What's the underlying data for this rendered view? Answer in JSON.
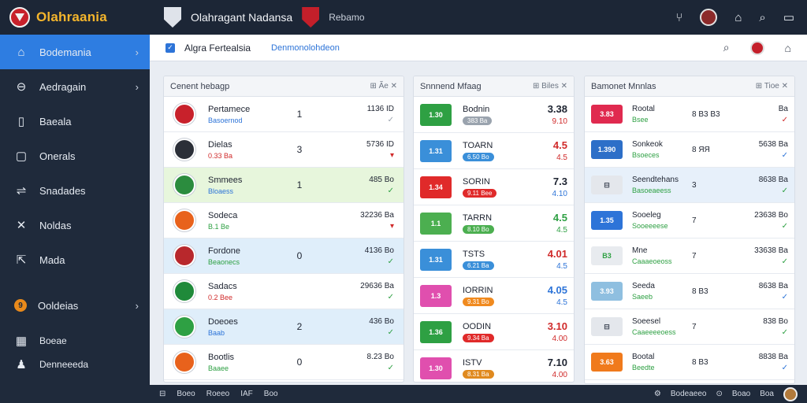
{
  "app": {
    "brand": "Olahraania",
    "title": "Olahragant Nadansa",
    "subtitle": "Rebamo"
  },
  "sidebar": {
    "items": [
      {
        "label": "Bodemania",
        "icon": "home-icon",
        "glyph": "⌂",
        "chevron": "›"
      },
      {
        "label": "Aedragain",
        "icon": "minus-circle-icon",
        "glyph": "⊖",
        "chevron": "›"
      },
      {
        "label": "Baeala",
        "icon": "document-icon",
        "glyph": "▯"
      },
      {
        "label": "Onerals",
        "icon": "folder-icon",
        "glyph": "▢"
      },
      {
        "label": "Snadades",
        "icon": "switch-icon",
        "glyph": "⇌"
      },
      {
        "label": "Noldas",
        "icon": "cross-icon",
        "glyph": "✕"
      },
      {
        "label": "Mada",
        "icon": "export-icon",
        "glyph": "⇱"
      },
      {
        "label": "Ooldeias",
        "icon": "orange-badge-icon",
        "glyph": "9",
        "chevron": "›"
      },
      {
        "label": "Boeae",
        "icon": "grid-icon",
        "glyph": "▦"
      },
      {
        "label": "Denneeeda",
        "icon": "user-icon",
        "glyph": "♟"
      }
    ]
  },
  "toolbar": {
    "title": "Algra Fertealsia",
    "link": "Denmonolohdeon"
  },
  "panel1": {
    "header": "Cenent hebagp",
    "tools": "⊞ Ãe ✕",
    "rows": [
      {
        "name": "Pertamece",
        "sub": "Basoernod",
        "score": "1",
        "odds": "1136 ID",
        "mark": "✓",
        "tint": "",
        "logo": "#c8212b",
        "subColor": "#2d74d8"
      },
      {
        "name": "Dielas",
        "sub": "0.33 Ba",
        "score": "3",
        "odds": "5736 ID",
        "mark": "▾",
        "tint": "",
        "logo": "#2b2f38",
        "subColor": "#d02a2a"
      },
      {
        "name": "Smmees",
        "sub": "Bloaess",
        "score": "1",
        "odds": "485 Bo",
        "mark": "✓",
        "tint": "green",
        "logo": "#2b8c3e",
        "subColor": "#2d74d8"
      },
      {
        "name": "Sodeca",
        "sub": "B.1 Be",
        "score": "",
        "odds": "32236 Ba",
        "mark": "▾",
        "tint": "",
        "logo": "#e8621c",
        "subColor": "#2ea043"
      },
      {
        "name": "Fordone",
        "sub": "Beaonecs",
        "score": "0",
        "odds": "4136 Bo",
        "mark": "✓",
        "tint": "blue",
        "logo": "#b8282c",
        "subColor": "#2ea043"
      },
      {
        "name": "Sadacs",
        "sub": "0.2 Bee",
        "score": "",
        "odds": "29636 Ba",
        "mark": "✓",
        "tint": "",
        "logo": "#1f8a3a",
        "subColor": "#d02a2a"
      },
      {
        "name": "Doeoes",
        "sub": "Baab",
        "score": "2",
        "odds": "436 Bo",
        "mark": "✓",
        "tint": "blue",
        "logo": "#2ea043",
        "subColor": "#2d74d8"
      },
      {
        "name": "Bootlis",
        "sub": "Baaee",
        "score": "0",
        "odds": "8.23 Bo",
        "mark": "✓",
        "tint": "",
        "logo": "#e8621c",
        "subColor": "#2ea043"
      }
    ]
  },
  "panel2": {
    "header": "Snnnend Mfaag",
    "tools": "⊞ Biles ✕",
    "rows": [
      {
        "chip": "1.30",
        "chipColor": "#2ea043",
        "name": "Bodnin",
        "pill": "383 Ba",
        "pillColor": "#9aa3ae",
        "odd1": "3.38",
        "odd2": "9.10",
        "o1c": "#1d2330",
        "o2c": "#d02a2a"
      },
      {
        "chip": "1.31",
        "chipColor": "#3a8fd9",
        "name": "TOARN",
        "pill": "6.50 Bo",
        "pillColor": "#3a8fd9",
        "odd1": "4.5",
        "odd2": "4.5",
        "o1c": "#d02a2a",
        "o2c": "#d02a2a"
      },
      {
        "chip": "1.34",
        "chipColor": "#e02a2a",
        "name": "SORIN",
        "pill": "9.11 Bee",
        "pillColor": "#e02a2a",
        "odd1": "7.3",
        "odd2": "4.10",
        "o1c": "#1d2330",
        "o2c": "#2d74d8"
      },
      {
        "chip": "1.1",
        "chipColor": "#4caf50",
        "name": "TARRN",
        "pill": "8.10 Bo",
        "pillColor": "#4caf50",
        "odd1": "4.5",
        "odd2": "4.5",
        "o1c": "#2ea043",
        "o2c": "#2ea043"
      },
      {
        "chip": "1.31",
        "chipColor": "#3a8fd9",
        "name": "TSTS",
        "pill": "6.21 Ba",
        "pillColor": "#3a8fd9",
        "odd1": "4.01",
        "odd2": "4.5",
        "o1c": "#d02a2a",
        "o2c": "#2d74d8"
      },
      {
        "chip": "1.3",
        "chipColor": "#e04fae",
        "name": "IORRIN",
        "pill": "9.31 Bo",
        "pillColor": "#f08a1f",
        "odd1": "4.05",
        "odd2": "4.5",
        "o1c": "#2d74d8",
        "o2c": "#2d74d8"
      },
      {
        "chip": "1.36",
        "chipColor": "#2ea043",
        "name": "OODIN",
        "pill": "9.34 Ba",
        "pillColor": "#e02a2a",
        "odd1": "3.10",
        "odd2": "4.00",
        "o1c": "#d02a2a",
        "o2c": "#d02a2a"
      },
      {
        "chip": "1.30",
        "chipColor": "#e04fae",
        "name": "ISTV",
        "pill": "8.31 Ba",
        "pillColor": "#e08a1f",
        "odd1": "7.10",
        "odd2": "4.00",
        "o1c": "#1d2330",
        "o2c": "#d02a2a"
      }
    ]
  },
  "panel3": {
    "header": "Bamonet Mnnlas",
    "tools": "⊞ Tioe ✕",
    "rows": [
      {
        "chip": "3.83",
        "chipBg": "#e02a4f",
        "chipFg": "#fff",
        "name": "Rootal",
        "sub": "Bsee",
        "val": "8 B3 B3",
        "right": "Ba",
        "mark": "✓",
        "markColor": "#d02a2a",
        "tint": ""
      },
      {
        "chip": "1.390",
        "chipBg": "#2d6fc8",
        "chipFg": "#fff",
        "name": "Sonkeok",
        "sub": "Bsoeces",
        "val": "8 ЯЯ",
        "right": "5638 Ba",
        "mark": "✓",
        "markColor": "#2d74d8",
        "tint": ""
      },
      {
        "chip": "⊟",
        "chipBg": "#e4e7ec",
        "chipFg": "#4a5260",
        "name": "Seendtehans",
        "sub": "Basoeaeess",
        "val": "3",
        "right": "8638 Ba",
        "mark": "✓",
        "markColor": "#2ea043",
        "tint": "blue"
      },
      {
        "chip": "1.35",
        "chipBg": "#2d74d8",
        "chipFg": "#fff",
        "name": "Sooeleg",
        "sub": "Sooeeeese",
        "val": "7",
        "right": "23638 Bo",
        "mark": "✓",
        "markColor": "#2ea043",
        "tint": ""
      },
      {
        "chip": "B3",
        "chipBg": "#e8ebef",
        "chipFg": "#2ea043",
        "name": "Mne",
        "sub": "Caaaeoeoss",
        "val": "7",
        "right": "33638 Ba",
        "mark": "✓",
        "markColor": "#2ea043",
        "tint": ""
      },
      {
        "chip": "3.93",
        "chipBg": "#8fbfe0",
        "chipFg": "#fff",
        "name": "Seeda",
        "sub": "Saeeb",
        "val": "8 B3",
        "right": "8638 Ba",
        "mark": "✓",
        "markColor": "#2d74d8",
        "tint": ""
      },
      {
        "chip": "⊟",
        "chipBg": "#e4e7ec",
        "chipFg": "#4a5260",
        "name": "Soeesel",
        "sub": "Caaeeeeoess",
        "val": "7",
        "right": "838 Bo",
        "mark": "✓",
        "markColor": "#2ea043",
        "tint": ""
      },
      {
        "chip": "3.63",
        "chipBg": "#f07a1c",
        "chipFg": "#fff",
        "name": "Bootal",
        "sub": "Beedte",
        "val": "8 B3",
        "right": "8838 Ba",
        "mark": "✓",
        "markColor": "#2d74d8",
        "tint": ""
      }
    ]
  },
  "footer": {
    "left": [
      "Boeo",
      "Roeeo",
      "IAF",
      "Boo"
    ],
    "right1": "Bodeaeeo",
    "right2": "Boao",
    "right3": "Boa"
  }
}
